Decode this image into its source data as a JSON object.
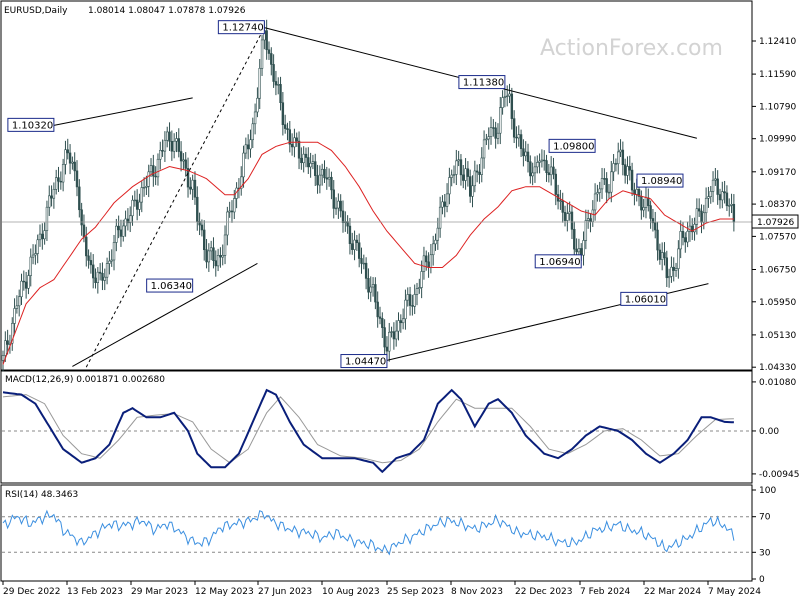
{
  "header": {
    "symbol": "EURUSD,Daily",
    "ohlc": "1.08014 1.08047 1.07878 1.07926"
  },
  "watermark": "ActionForex.com",
  "colors": {
    "candle": "#2f4f4f",
    "ma": "#dd2222",
    "macd": "#0a1f7a",
    "signal": "#999999",
    "rsi": "#3b8fe0",
    "trendline": "#000000"
  },
  "chart_data": {
    "type": "line",
    "price": {
      "label": "EURUSD,Daily",
      "ylim": [
        1.0431,
        1.1293
      ],
      "y_ticks": [
        "1.12410",
        "1.11590",
        "1.10790",
        "1.09990",
        "1.09170",
        "1.08370",
        "1.07570",
        "1.06750",
        "1.05950",
        "1.05130",
        "1.04330"
      ],
      "last_price": "1.07926",
      "close_points": [
        [
          0,
          1.045
        ],
        [
          6,
          1.059
        ],
        [
          12,
          1.069
        ],
        [
          16,
          1.075
        ],
        [
          20,
          1.084
        ],
        [
          25,
          1.092
        ],
        [
          28,
          1.096
        ],
        [
          32,
          1.0905
        ],
        [
          34,
          1.076
        ],
        [
          38,
          1.068
        ],
        [
          42,
          1.064
        ],
        [
          46,
          1.07
        ],
        [
          50,
          1.077
        ],
        [
          56,
          1.082
        ],
        [
          60,
          1.087
        ],
        [
          66,
          1.093
        ],
        [
          70,
          1.099
        ],
        [
          74,
          1.1
        ],
        [
          78,
          1.093
        ],
        [
          82,
          1.088
        ],
        [
          84,
          1.08
        ],
        [
          88,
          1.072
        ],
        [
          92,
          1.069
        ],
        [
          94,
          1.071
        ],
        [
          97,
          1.079
        ],
        [
          100,
          1.085
        ],
        [
          104,
          1.094
        ],
        [
          108,
          1.103
        ],
        [
          111,
          1.116
        ],
        [
          113,
          1.127
        ],
        [
          116,
          1.118
        ],
        [
          120,
          1.108
        ],
        [
          124,
          1.099
        ],
        [
          128,
          1.097
        ],
        [
          134,
          1.092
        ],
        [
          140,
          1.09
        ],
        [
          146,
          1.081
        ],
        [
          150,
          1.076
        ],
        [
          156,
          1.068
        ],
        [
          160,
          1.061
        ],
        [
          164,
          1.053
        ],
        [
          166,
          1.048
        ],
        [
          170,
          1.053
        ],
        [
          174,
          1.058
        ],
        [
          178,
          1.061
        ],
        [
          182,
          1.068
        ],
        [
          186,
          1.073
        ],
        [
          188,
          1.078
        ],
        [
          192,
          1.088
        ],
        [
          196,
          1.093
        ],
        [
          200,
          1.092
        ],
        [
          202,
          1.086
        ],
        [
          206,
          1.094
        ],
        [
          210,
          1.101
        ],
        [
          214,
          1.103
        ],
        [
          217,
          1.111
        ],
        [
          219,
          1.11
        ],
        [
          222,
          1.099
        ],
        [
          226,
          1.096
        ],
        [
          230,
          1.09
        ],
        [
          232,
          1.096
        ],
        [
          236,
          1.092
        ],
        [
          240,
          1.086
        ],
        [
          242,
          1.082
        ],
        [
          246,
          1.078
        ],
        [
          248,
          1.072
        ],
        [
          250,
          1.072
        ],
        [
          254,
          1.082
        ],
        [
          258,
          1.088
        ],
        [
          262,
          1.089
        ],
        [
          266,
          1.096
        ],
        [
          270,
          1.093
        ],
        [
          272,
          1.087
        ],
        [
          276,
          1.085
        ],
        [
          280,
          1.081
        ],
        [
          284,
          1.072
        ],
        [
          287,
          1.066
        ],
        [
          290,
          1.068
        ],
        [
          293,
          1.074
        ],
        [
          297,
          1.078
        ],
        [
          302,
          1.081
        ],
        [
          306,
          1.088
        ],
        [
          310,
          1.087
        ],
        [
          312,
          1.086
        ],
        [
          315,
          1.081
        ],
        [
          316,
          1.0793
        ]
      ],
      "ma_points": [
        [
          0,
          1.044
        ],
        [
          10,
          1.059
        ],
        [
          16,
          1.063
        ],
        [
          22,
          1.065
        ],
        [
          28,
          1.07
        ],
        [
          34,
          1.075
        ],
        [
          40,
          1.078
        ],
        [
          48,
          1.084
        ],
        [
          56,
          1.088
        ],
        [
          64,
          1.091
        ],
        [
          72,
          1.093
        ],
        [
          80,
          1.092
        ],
        [
          88,
          1.09
        ],
        [
          96,
          1.086
        ],
        [
          100,
          1.086
        ],
        [
          106,
          1.09
        ],
        [
          112,
          1.096
        ],
        [
          118,
          1.098
        ],
        [
          124,
          1.099
        ],
        [
          130,
          1.099
        ],
        [
          136,
          1.099
        ],
        [
          142,
          1.097
        ],
        [
          148,
          1.093
        ],
        [
          154,
          1.088
        ],
        [
          160,
          1.082
        ],
        [
          166,
          1.077
        ],
        [
          172,
          1.073
        ],
        [
          178,
          1.069
        ],
        [
          184,
          1.068
        ],
        [
          190,
          1.068
        ],
        [
          196,
          1.071
        ],
        [
          202,
          1.076
        ],
        [
          208,
          1.08
        ],
        [
          214,
          1.083
        ],
        [
          220,
          1.087
        ],
        [
          226,
          1.088
        ],
        [
          232,
          1.088
        ],
        [
          238,
          1.086
        ],
        [
          244,
          1.084
        ],
        [
          250,
          1.082
        ],
        [
          256,
          1.081
        ],
        [
          262,
          1.085
        ],
        [
          268,
          1.087
        ],
        [
          274,
          1.086
        ],
        [
          280,
          1.085
        ],
        [
          286,
          1.081
        ],
        [
          292,
          1.079
        ],
        [
          298,
          1.077
        ],
        [
          304,
          1.079
        ],
        [
          310,
          1.08
        ],
        [
          316,
          1.08
        ]
      ],
      "labels": [
        {
          "text": "1.10320",
          "x": 22,
          "y": 1.1032
        },
        {
          "text": "1.12740",
          "x": 113,
          "y": 1.1274
        },
        {
          "text": "1.06340",
          "x": 82,
          "y": 1.0634
        },
        {
          "text": "1.04470",
          "x": 166,
          "y": 1.0447
        },
        {
          "text": "1.11380",
          "x": 217,
          "y": 1.1138
        },
        {
          "text": "1.09800",
          "x": 256,
          "y": 1.098
        },
        {
          "text": "1.06940",
          "x": 250,
          "y": 1.0694
        },
        {
          "text": "1.08940",
          "x": 294,
          "y": 1.0894
        },
        {
          "text": "1.06010",
          "x": 287,
          "y": 1.0601
        }
      ],
      "trendlines": [
        {
          "from": [
            22,
            1.1032
          ],
          "to": [
            82,
            1.11
          ],
          "style": "solid"
        },
        {
          "from": [
            30,
            1.0435
          ],
          "to": [
            110,
            1.069
          ],
          "style": "solid"
        },
        {
          "from": [
            36,
            1.0433
          ],
          "to": [
            113,
            1.1274
          ],
          "style": "dashed"
        },
        {
          "from": [
            113,
            1.1274
          ],
          "to": [
            300,
            1.1
          ],
          "style": "solid"
        },
        {
          "from": [
            166,
            1.045
          ],
          "to": [
            305,
            1.064
          ],
          "style": "solid"
        }
      ]
    },
    "macd": {
      "label": "MACD(12,26,9) 0.001871 0.002680",
      "ylim": [
        -0.0108,
        0.0121
      ],
      "y_ticks": [
        "0.01080",
        "0.00",
        "-0.009457"
      ],
      "macd_points": [
        [
          0,
          0.0085
        ],
        [
          8,
          0.008
        ],
        [
          14,
          0.006
        ],
        [
          20,
          0.001
        ],
        [
          26,
          -0.004
        ],
        [
          34,
          -0.007
        ],
        [
          40,
          -0.006
        ],
        [
          46,
          -0.003
        ],
        [
          52,
          0.004
        ],
        [
          56,
          0.005
        ],
        [
          62,
          0.003
        ],
        [
          68,
          0.003
        ],
        [
          74,
          0.004
        ],
        [
          80,
          0.0
        ],
        [
          84,
          -0.005
        ],
        [
          90,
          -0.008
        ],
        [
          96,
          -0.008
        ],
        [
          102,
          -0.005
        ],
        [
          108,
          0.002
        ],
        [
          114,
          0.009
        ],
        [
          118,
          0.008
        ],
        [
          124,
          0.002
        ],
        [
          130,
          -0.003
        ],
        [
          138,
          -0.006
        ],
        [
          146,
          -0.006
        ],
        [
          152,
          -0.006
        ],
        [
          160,
          -0.007
        ],
        [
          164,
          -0.009
        ],
        [
          170,
          -0.006
        ],
        [
          176,
          -0.005
        ],
        [
          182,
          -0.002
        ],
        [
          188,
          0.006
        ],
        [
          194,
          0.009
        ],
        [
          198,
          0.007
        ],
        [
          204,
          0.001
        ],
        [
          210,
          0.006
        ],
        [
          214,
          0.007
        ],
        [
          220,
          0.004
        ],
        [
          226,
          -0.001
        ],
        [
          234,
          -0.005
        ],
        [
          240,
          -0.006
        ],
        [
          246,
          -0.004
        ],
        [
          252,
          -0.001
        ],
        [
          258,
          0.001
        ],
        [
          266,
          0.0
        ],
        [
          272,
          -0.002
        ],
        [
          278,
          -0.005
        ],
        [
          284,
          -0.007
        ],
        [
          290,
          -0.005
        ],
        [
          296,
          -0.002
        ],
        [
          302,
          0.003
        ],
        [
          306,
          0.003
        ],
        [
          312,
          0.002
        ],
        [
          316,
          0.0019
        ]
      ],
      "signal_points": [
        [
          0,
          0.0075
        ],
        [
          10,
          0.008
        ],
        [
          18,
          0.006
        ],
        [
          26,
          -0.001
        ],
        [
          34,
          -0.005
        ],
        [
          42,
          -0.006
        ],
        [
          50,
          -0.002
        ],
        [
          58,
          0.003
        ],
        [
          66,
          0.0035
        ],
        [
          74,
          0.0038
        ],
        [
          82,
          0.002
        ],
        [
          90,
          -0.004
        ],
        [
          98,
          -0.007
        ],
        [
          106,
          -0.004
        ],
        [
          114,
          0.004
        ],
        [
          120,
          0.0075
        ],
        [
          128,
          0.003
        ],
        [
          136,
          -0.003
        ],
        [
          146,
          -0.0055
        ],
        [
          156,
          -0.006
        ],
        [
          164,
          -0.007
        ],
        [
          172,
          -0.0065
        ],
        [
          180,
          -0.004
        ],
        [
          188,
          0.002
        ],
        [
          196,
          0.007
        ],
        [
          204,
          0.005
        ],
        [
          212,
          0.005
        ],
        [
          220,
          0.005
        ],
        [
          228,
          0.001
        ],
        [
          236,
          -0.004
        ],
        [
          244,
          -0.005
        ],
        [
          252,
          -0.003
        ],
        [
          260,
          0.0
        ],
        [
          268,
          0.0005
        ],
        [
          276,
          -0.002
        ],
        [
          284,
          -0.0055
        ],
        [
          292,
          -0.005
        ],
        [
          300,
          -0.001
        ],
        [
          308,
          0.0025
        ],
        [
          316,
          0.0027
        ]
      ],
      "zero_line": 0.0
    },
    "rsi": {
      "label": "RSI(14) 48.3463",
      "ylim": [
        0,
        100
      ],
      "y_ticks": [
        100,
        70,
        30,
        0
      ],
      "levels": [
        70,
        30
      ],
      "points": [
        [
          0,
          60
        ],
        [
          6,
          70
        ],
        [
          12,
          62
        ],
        [
          18,
          70
        ],
        [
          22,
          72
        ],
        [
          26,
          55
        ],
        [
          30,
          48
        ],
        [
          34,
          40
        ],
        [
          38,
          48
        ],
        [
          42,
          55
        ],
        [
          46,
          62
        ],
        [
          50,
          60
        ],
        [
          56,
          62
        ],
        [
          60,
          66
        ],
        [
          66,
          55
        ],
        [
          70,
          62
        ],
        [
          74,
          58
        ],
        [
          78,
          50
        ],
        [
          82,
          42
        ],
        [
          86,
          40
        ],
        [
          90,
          46
        ],
        [
          94,
          58
        ],
        [
          100,
          62
        ],
        [
          106,
          65
        ],
        [
          110,
          70
        ],
        [
          113,
          74
        ],
        [
          116,
          66
        ],
        [
          120,
          60
        ],
        [
          126,
          54
        ],
        [
          132,
          52
        ],
        [
          138,
          46
        ],
        [
          144,
          52
        ],
        [
          150,
          44
        ],
        [
          156,
          40
        ],
        [
          160,
          38
        ],
        [
          164,
          32
        ],
        [
          168,
          35
        ],
        [
          172,
          42
        ],
        [
          176,
          46
        ],
        [
          180,
          52
        ],
        [
          186,
          60
        ],
        [
          192,
          66
        ],
        [
          198,
          62
        ],
        [
          204,
          56
        ],
        [
          210,
          62
        ],
        [
          214,
          66
        ],
        [
          218,
          60
        ],
        [
          222,
          52
        ],
        [
          228,
          50
        ],
        [
          234,
          48
        ],
        [
          240,
          42
        ],
        [
          246,
          40
        ],
        [
          250,
          44
        ],
        [
          256,
          55
        ],
        [
          262,
          58
        ],
        [
          266,
          62
        ],
        [
          270,
          56
        ],
        [
          276,
          52
        ],
        [
          282,
          44
        ],
        [
          286,
          34
        ],
        [
          290,
          38
        ],
        [
          296,
          46
        ],
        [
          302,
          58
        ],
        [
          306,
          66
        ],
        [
          312,
          60
        ],
        [
          316,
          48
        ]
      ]
    },
    "x_axis": {
      "n": 317,
      "ticks": [
        {
          "i": 0,
          "label": "29 Dec 2022"
        },
        {
          "i": 33,
          "label": "13 Feb 2023"
        },
        {
          "i": 64,
          "label": "29 Mar 2023"
        },
        {
          "i": 95,
          "label": "12 May 2023"
        },
        {
          "i": 126,
          "label": "27 Jun 2023"
        },
        {
          "i": 158,
          "label": "10 Aug 2023"
        },
        {
          "i": 190,
          "label": "25 Sep 2023"
        },
        {
          "i": 220,
          "label": "8 Nov 2023"
        },
        {
          "i": 252,
          "label": "22 Dec 2023"
        },
        {
          "i": 284,
          "label": "7 Feb 2024"
        },
        {
          "i": 316,
          "label": "22 Mar 2024"
        },
        {
          "i": 348,
          "label": "7 May 2024"
        }
      ]
    }
  }
}
